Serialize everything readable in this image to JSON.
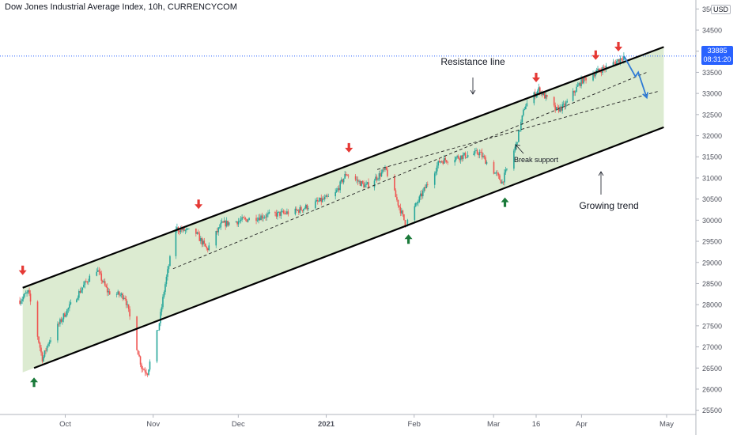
{
  "header": {
    "title": "Dow Jones Industrial Average Index, 10h, CURRENCYCOM",
    "currency": "USD"
  },
  "price_tag": {
    "price": "33885",
    "countdown": "08:31:20"
  },
  "colors": {
    "up_candle": "#26a69a",
    "down_candle": "#ef5350",
    "channel_fill": "#d6e8c9",
    "arrow_red": "#e53935",
    "arrow_green": "#1b7a3a",
    "projection": "#2f7bd6",
    "last_price_line": "#2962ff"
  },
  "annotations": {
    "resistance": "Resistance line",
    "growing_trend": "Growing trend",
    "break_support": "Break support"
  },
  "chart_data": {
    "type": "candlestick",
    "title": "Dow Jones Industrial Average Index, 10h, CURRENCYCOM",
    "ylim": [
      25400,
      35100
    ],
    "y_ticks": [
      25500,
      26000,
      26500,
      27000,
      27500,
      28000,
      28500,
      29000,
      29500,
      30000,
      30500,
      31000,
      31500,
      32000,
      32500,
      33000,
      33500,
      34000,
      34500,
      35000
    ],
    "x_ticks": [
      "Oct",
      "Nov",
      "Dec",
      "2021",
      "Feb",
      "Mar",
      "16",
      "Apr",
      "May"
    ],
    "last_price": 33885,
    "price_path": [
      {
        "t": "Sep 15",
        "v": 28100
      },
      {
        "t": "Sep 18",
        "v": 28300
      },
      {
        "t": "Sep 23",
        "v": 26700
      },
      {
        "t": "Sep 25",
        "v": 27100
      },
      {
        "t": "Oct 1",
        "v": 27800
      },
      {
        "t": "Oct 9",
        "v": 28600
      },
      {
        "t": "Oct 12",
        "v": 28850
      },
      {
        "t": "Oct 16",
        "v": 28300
      },
      {
        "t": "Oct 22",
        "v": 28200
      },
      {
        "t": "Oct 28",
        "v": 26500
      },
      {
        "t": "Oct 30",
        "v": 26400
      },
      {
        "t": "Nov 3",
        "v": 27500
      },
      {
        "t": "Nov 5",
        "v": 28400
      },
      {
        "t": "Nov 9",
        "v": 29800
      },
      {
        "t": "Nov 16",
        "v": 29700
      },
      {
        "t": "Nov 20",
        "v": 29300
      },
      {
        "t": "Nov 25",
        "v": 29900
      },
      {
        "t": "Dec 10",
        "v": 30100
      },
      {
        "t": "Dec 21",
        "v": 30200
      },
      {
        "t": "Jan 4",
        "v": 30600
      },
      {
        "t": "Jan 8",
        "v": 31100
      },
      {
        "t": "Jan 15",
        "v": 30800
      },
      {
        "t": "Jan 22",
        "v": 31200
      },
      {
        "t": "Jan 29",
        "v": 29900
      },
      {
        "t": "Feb 2",
        "v": 30400
      },
      {
        "t": "Feb 10",
        "v": 31400
      },
      {
        "t": "Feb 24",
        "v": 31600
      },
      {
        "t": "Mar 4",
        "v": 30900
      },
      {
        "t": "Mar 9",
        "v": 31800
      },
      {
        "t": "Mar 12",
        "v": 32700
      },
      {
        "t": "Mar 17",
        "v": 33100
      },
      {
        "t": "Mar 23",
        "v": 32600
      },
      {
        "t": "Mar 26",
        "v": 32700
      },
      {
        "t": "Apr 1",
        "v": 33300
      },
      {
        "t": "Apr 6",
        "v": 33500
      },
      {
        "t": "Apr 12",
        "v": 33700
      },
      {
        "t": "Apr 16",
        "v": 33885
      }
    ],
    "channel": {
      "resistance": [
        {
          "t": "Sep 16",
          "v": 28400
        },
        {
          "t": "Apr 30",
          "v": 34100
        }
      ],
      "support": [
        {
          "t": "Sep 20",
          "v": 26500
        },
        {
          "t": "Apr 30",
          "v": 32200
        }
      ],
      "dashed_upper": [
        {
          "t": "Nov 8",
          "v": 28850
        },
        {
          "t": "Apr 24",
          "v": 33500
        }
      ],
      "dashed_lower": [
        {
          "t": "Jan 19",
          "v": 31200
        },
        {
          "t": "Apr 28",
          "v": 33050
        }
      ]
    },
    "projection": [
      {
        "t": "Apr 16",
        "v": 33885
      },
      {
        "t": "Apr 20",
        "v": 33400
      },
      {
        "t": "Apr 21",
        "v": 33500
      },
      {
        "t": "Apr 24",
        "v": 32900
      }
    ],
    "sell_arrows": [
      "Sep 16",
      "Nov 17",
      "Jan 9",
      "Mar 16",
      "Apr 6",
      "Apr 14"
    ],
    "buy_arrows": [
      "Sep 20",
      "Jan 30",
      "Mar 5"
    ]
  }
}
